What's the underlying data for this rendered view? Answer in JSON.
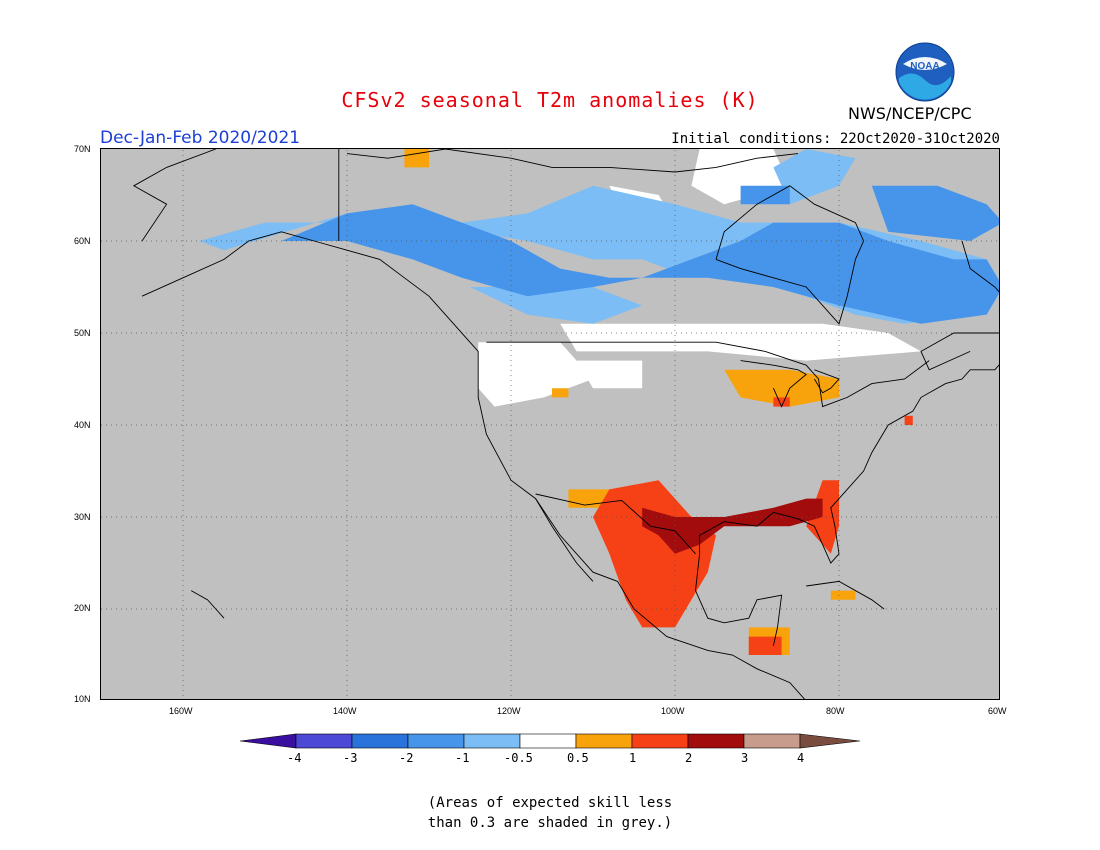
{
  "header": {
    "title": "CFSv2 seasonal T2m anomalies (K)",
    "season": "Dec-Jan-Feb 2020/2021",
    "initial_conditions": "Initial conditions: 22Oct2020-31Oct2020",
    "agency": "NWS/NCEP/CPC",
    "logo_text": "NOAA"
  },
  "axes": {
    "lat_labels": [
      "70N",
      "60N",
      "50N",
      "40N",
      "30N",
      "20N",
      "10N"
    ],
    "lon_labels": [
      "160W",
      "140W",
      "120W",
      "100W",
      "80W",
      "60W"
    ]
  },
  "legend": {
    "labels": [
      "-4",
      "-3",
      "-2",
      "-1",
      "-0.5",
      "0.5",
      "1",
      "2",
      "3",
      "4"
    ],
    "colors": [
      "#3a0fa0",
      "#4b49d5",
      "#2a73da",
      "#4695eb",
      "#7cbdf5",
      "#ffffff",
      "#f8a30b",
      "#f64116",
      "#a30c0c",
      "#c79c8c",
      "#7a4c3f"
    ]
  },
  "note": {
    "line1": "(Areas of expected skill less",
    "line2": "than 0.3 are shaded in grey.)"
  },
  "map_colors": {
    "grey": "#c0c0c0",
    "white": "#ffffff",
    "blue_light": "#7cbdf5",
    "blue": "#4695eb",
    "orange": "#f8a30b",
    "red": "#f64116",
    "darkred": "#a30c0c"
  }
}
